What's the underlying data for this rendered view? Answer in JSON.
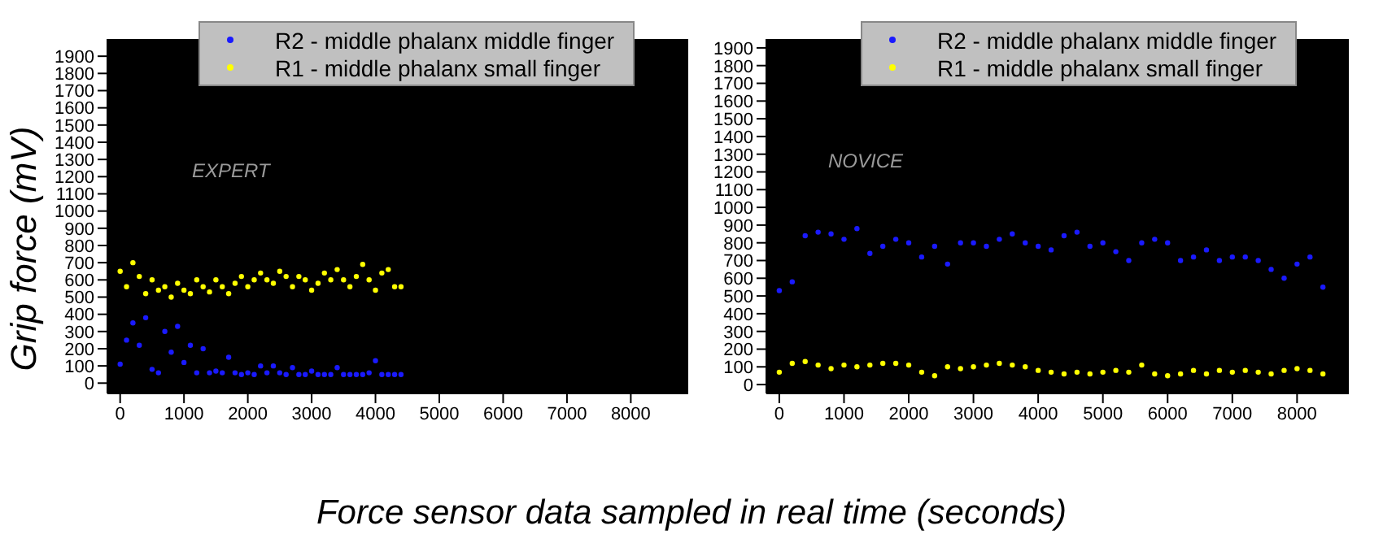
{
  "chart_data": [
    {
      "type": "scatter",
      "ylabel": "Grip force (mV)",
      "xlabel": "Force sensor data sampled in real time (seconds)",
      "annotations": [
        "EXPERT"
      ],
      "legend": "top",
      "marker": "circle",
      "grid": false,
      "xlim": [
        -200,
        8900
      ],
      "ylim": [
        -60,
        2000
      ],
      "xticks": [
        0,
        1000,
        2000,
        3000,
        4000,
        5000,
        6000,
        7000,
        8000
      ],
      "yticks": [
        0,
        100,
        200,
        300,
        400,
        500,
        600,
        700,
        800,
        900,
        1000,
        1100,
        1200,
        1300,
        1400,
        1500,
        1600,
        1700,
        1800,
        1900
      ],
      "series": [
        {
          "name": "R2 - middle phalanx middle finger",
          "color": "#1a1aff",
          "x": [
            0,
            100,
            200,
            300,
            400,
            500,
            600,
            700,
            800,
            900,
            1000,
            1100,
            1200,
            1300,
            1400,
            1500,
            1600,
            1700,
            1800,
            1900,
            2000,
            2100,
            2200,
            2300,
            2400,
            2500,
            2600,
            2700,
            2800,
            2900,
            3000,
            3100,
            3200,
            3300,
            3400,
            3500,
            3600,
            3700,
            3800,
            3900,
            4000,
            4100,
            4200,
            4300,
            4400
          ],
          "values": [
            110,
            250,
            350,
            220,
            380,
            80,
            60,
            300,
            180,
            330,
            120,
            220,
            60,
            200,
            60,
            70,
            60,
            150,
            60,
            50,
            60,
            50,
            100,
            60,
            100,
            60,
            50,
            90,
            50,
            50,
            70,
            50,
            50,
            50,
            90,
            50,
            50,
            50,
            50,
            60,
            130,
            50,
            50,
            50,
            50
          ]
        },
        {
          "name": "R1 - middle phalanx small finger",
          "color": "#ffff00",
          "x": [
            0,
            100,
            200,
            300,
            400,
            500,
            600,
            700,
            800,
            900,
            1000,
            1100,
            1200,
            1300,
            1400,
            1500,
            1600,
            1700,
            1800,
            1900,
            2000,
            2100,
            2200,
            2300,
            2400,
            2500,
            2600,
            2700,
            2800,
            2900,
            3000,
            3100,
            3200,
            3300,
            3400,
            3500,
            3600,
            3700,
            3800,
            3900,
            4000,
            4100,
            4200,
            4300,
            4400
          ],
          "values": [
            650,
            560,
            700,
            620,
            520,
            600,
            540,
            560,
            500,
            580,
            540,
            520,
            600,
            560,
            530,
            600,
            560,
            520,
            580,
            620,
            560,
            600,
            640,
            600,
            580,
            650,
            620,
            560,
            620,
            600,
            540,
            580,
            640,
            600,
            660,
            600,
            560,
            620,
            690,
            600,
            540,
            640,
            660,
            560,
            560
          ]
        }
      ]
    },
    {
      "type": "scatter",
      "annotations": [
        "NOVICE"
      ],
      "legend": "top",
      "marker": "circle",
      "grid": false,
      "xlim": [
        -200,
        8800
      ],
      "ylim": [
        -50,
        1950
      ],
      "xticks": [
        0,
        1000,
        2000,
        3000,
        4000,
        5000,
        6000,
        7000,
        8000
      ],
      "yticks": [
        0,
        100,
        200,
        300,
        400,
        500,
        600,
        700,
        800,
        900,
        1000,
        1100,
        1200,
        1300,
        1400,
        1500,
        1600,
        1700,
        1800,
        1900
      ],
      "series": [
        {
          "name": "R2 - middle phalanx middle finger",
          "color": "#1a1aff",
          "x": [
            0,
            200,
            400,
            600,
            800,
            1000,
            1200,
            1400,
            1600,
            1800,
            2000,
            2200,
            2400,
            2600,
            2800,
            3000,
            3200,
            3400,
            3600,
            3800,
            4000,
            4200,
            4400,
            4600,
            4800,
            5000,
            5200,
            5400,
            5600,
            5800,
            6000,
            6200,
            6400,
            6600,
            6800,
            7000,
            7200,
            7400,
            7600,
            7800,
            8000,
            8200,
            8400
          ],
          "values": [
            530,
            580,
            840,
            860,
            850,
            820,
            880,
            740,
            780,
            820,
            800,
            720,
            780,
            680,
            800,
            800,
            780,
            820,
            850,
            800,
            780,
            760,
            840,
            860,
            780,
            800,
            750,
            700,
            800,
            820,
            800,
            700,
            720,
            760,
            700,
            720,
            720,
            700,
            650,
            600,
            680,
            720,
            550
          ]
        },
        {
          "name": "R1 - middle phalanx small finger",
          "color": "#ffff00",
          "x": [
            0,
            200,
            400,
            600,
            800,
            1000,
            1200,
            1400,
            1600,
            1800,
            2000,
            2200,
            2400,
            2600,
            2800,
            3000,
            3200,
            3400,
            3600,
            3800,
            4000,
            4200,
            4400,
            4600,
            4800,
            5000,
            5200,
            5400,
            5600,
            5800,
            6000,
            6200,
            6400,
            6600,
            6800,
            7000,
            7200,
            7400,
            7600,
            7800,
            8000,
            8200,
            8400
          ],
          "values": [
            70,
            120,
            130,
            110,
            90,
            110,
            100,
            110,
            120,
            120,
            110,
            70,
            50,
            100,
            90,
            100,
            110,
            120,
            110,
            100,
            80,
            70,
            60,
            70,
            60,
            70,
            80,
            70,
            110,
            60,
            50,
            60,
            80,
            60,
            80,
            70,
            80,
            70,
            60,
            80,
            90,
            80,
            60
          ]
        }
      ]
    }
  ]
}
